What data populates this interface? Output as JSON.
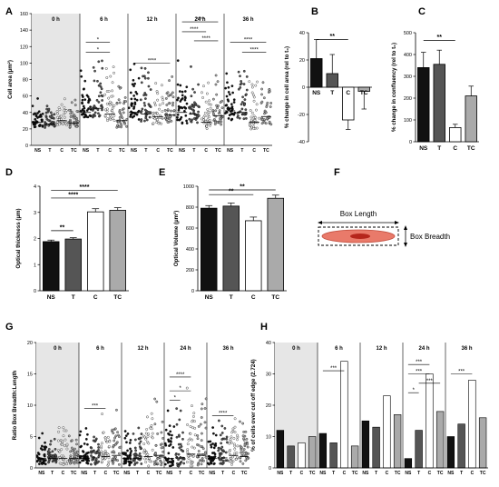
{
  "strip_colors": {
    "NS": "#111111",
    "T": "#555555",
    "C": "#ffffff",
    "TC": "#aaaaaa"
  },
  "chart_data": [
    {
      "panel": "A",
      "type": "scatter",
      "ylabel": "Cell area (µm²)",
      "ylim": [
        0,
        160
      ],
      "yticks": [
        0,
        20,
        40,
        60,
        80,
        100,
        120,
        140,
        160
      ],
      "categories": [
        "NS",
        "T",
        "C",
        "TC"
      ],
      "timepoints": [
        "0 h",
        "6 h",
        "12 h",
        "24 h",
        "36 h"
      ],
      "shaded_timepoint": "0 h",
      "series_medians": [
        [
          28,
          26,
          30,
          27
        ],
        [
          40,
          45,
          38,
          30
        ],
        [
          40,
          38,
          35,
          37
        ],
        [
          40,
          38,
          28,
          36
        ],
        [
          42,
          40,
          28,
          35
        ]
      ],
      "series_spread": [
        [
          35,
          30,
          40,
          30
        ],
        [
          55,
          70,
          60,
          50
        ],
        [
          70,
          60,
          55,
          50
        ],
        [
          80,
          70,
          55,
          60
        ],
        [
          70,
          65,
          55,
          60
        ]
      ],
      "significance": [
        {
          "timepoint": 1,
          "from": 0,
          "to": 2,
          "label": "*",
          "level": 125
        },
        {
          "timepoint": 1,
          "from": 0,
          "to": 2,
          "label": "*",
          "level": 113
        },
        {
          "timepoint": 2,
          "from": 0,
          "to": 3,
          "label": "****",
          "level": 100
        },
        {
          "timepoint": 3,
          "from": 0,
          "to": 3,
          "label": "****",
          "level": 150
        },
        {
          "timepoint": 3,
          "from": 0,
          "to": 2,
          "label": "****",
          "level": 138
        },
        {
          "timepoint": 3,
          "from": 1,
          "to": 3,
          "label": "****",
          "level": 127
        },
        {
          "timepoint": 4,
          "from": 0,
          "to": 3,
          "label": "****",
          "level": 125
        },
        {
          "timepoint": 4,
          "from": 1,
          "to": 3,
          "label": "****",
          "level": 113
        }
      ]
    },
    {
      "panel": "B",
      "type": "bar",
      "ylabel": "% change in cell area (rel to t₀)",
      "ylim": [
        -40,
        40
      ],
      "yticks": [
        -40,
        -20,
        0,
        20,
        40
      ],
      "categories": [
        "NS",
        "T",
        "C",
        "TC"
      ],
      "values": [
        21,
        10,
        -24,
        -3
      ],
      "errors": [
        14,
        14,
        7,
        13
      ],
      "significance": [
        {
          "from": 0,
          "to": 2,
          "label": "**",
          "level": 35
        }
      ]
    },
    {
      "panel": "C",
      "type": "bar",
      "ylabel": "% change in confluency (rel to t₀)",
      "ylim": [
        0,
        500
      ],
      "yticks": [
        0,
        100,
        200,
        300,
        400,
        500
      ],
      "categories": [
        "NS",
        "T",
        "C",
        "TC"
      ],
      "values": [
        340,
        355,
        65,
        210
      ],
      "errors": [
        70,
        65,
        15,
        45
      ],
      "significance": [
        {
          "from": 0,
          "to": 2,
          "label": "**",
          "level": 465
        }
      ]
    },
    {
      "panel": "D",
      "type": "bar",
      "ylabel": "Optical thickness (µm)",
      "ylim": [
        0,
        4
      ],
      "yticks": [
        0,
        1,
        2,
        3,
        4
      ],
      "categories": [
        "NS",
        "T",
        "C",
        "TC"
      ],
      "values": [
        1.88,
        1.98,
        3.02,
        3.08
      ],
      "errors": [
        0.06,
        0.05,
        0.12,
        0.1
      ],
      "significance": [
        {
          "from": 0,
          "to": 3,
          "label": "****",
          "level": 3.85
        },
        {
          "from": 0,
          "to": 2,
          "label": "****",
          "level": 3.55
        },
        {
          "from": 0,
          "to": 1,
          "label": "**",
          "level": 2.3
        }
      ]
    },
    {
      "panel": "E",
      "type": "bar",
      "ylabel": "Optical Volume (µm³)",
      "ylim": [
        0,
        1000
      ],
      "yticks": [
        0,
        200,
        400,
        600,
        800,
        1000
      ],
      "categories": [
        "NS",
        "T",
        "C",
        "TC"
      ],
      "values": [
        790,
        810,
        670,
        885
      ],
      "errors": [
        25,
        30,
        35,
        30
      ],
      "significance": [
        {
          "from": 0,
          "to": 3,
          "label": "**",
          "level": 965
        },
        {
          "from": 0,
          "to": 2,
          "label": "**",
          "level": 920
        }
      ]
    },
    {
      "panel": "G",
      "type": "scatter",
      "ylabel": "Ratio Box Breadth:Length",
      "ylim": [
        0,
        20
      ],
      "yticks": [
        0,
        5,
        10,
        15,
        20
      ],
      "categories": [
        "NS",
        "T",
        "C",
        "TC"
      ],
      "timepoints": [
        "0 h",
        "6 h",
        "12 h",
        "24 h",
        "36 h"
      ],
      "shaded_timepoint": "0 h",
      "series_medians": [
        [
          1.5,
          1.5,
          1.5,
          1.5
        ],
        [
          1.5,
          1.6,
          1.8,
          2.0
        ],
        [
          1.5,
          1.5,
          1.8,
          2.0
        ],
        [
          1.5,
          1.6,
          2.2,
          2.0
        ],
        [
          1.5,
          1.6,
          2.0,
          1.8
        ]
      ],
      "series_spread": [
        [
          5,
          4,
          6,
          5
        ],
        [
          6,
          6,
          9,
          9
        ],
        [
          6,
          6,
          9,
          10
        ],
        [
          8,
          10,
          12,
          10
        ],
        [
          6,
          7,
          9,
          8
        ]
      ],
      "significance": [
        {
          "timepoint": 1,
          "from": 0,
          "to": 2,
          "label": "***",
          "level": 9.5
        },
        {
          "timepoint": 3,
          "from": 0,
          "to": 2,
          "label": "****",
          "level": 14.5
        },
        {
          "timepoint": 3,
          "from": 0,
          "to": 2,
          "label": "*",
          "level": 12.3
        },
        {
          "timepoint": 3,
          "from": 0,
          "to": 1,
          "label": "*",
          "level": 10.8
        },
        {
          "timepoint": 4,
          "from": 0,
          "to": 2,
          "label": "****",
          "level": 8.3
        }
      ]
    },
    {
      "panel": "H",
      "type": "bar",
      "ylabel": "% of cells over cut off edge (2.724)",
      "ylim": [
        0,
        40
      ],
      "yticks": [
        0,
        10,
        20,
        30,
        40
      ],
      "categories": [
        "NS",
        "T",
        "C",
        "TC"
      ],
      "timepoints": [
        "0 h",
        "6 h",
        "12 h",
        "24 h",
        "36 h"
      ],
      "shaded_timepoint": "0 h",
      "values": [
        [
          12,
          7,
          8,
          10
        ],
        [
          11,
          8,
          34,
          7
        ],
        [
          15,
          13,
          23,
          17
        ],
        [
          3,
          12,
          30,
          18
        ],
        [
          10,
          14,
          28,
          16
        ]
      ],
      "significance": [
        {
          "timepoint": 1,
          "from": 0,
          "to": 2,
          "label": "***",
          "level": 31
        },
        {
          "timepoint": 3,
          "from": 0,
          "to": 2,
          "label": "***",
          "level": 33
        },
        {
          "timepoint": 3,
          "from": 0,
          "to": 2,
          "label": "***",
          "level": 30
        },
        {
          "timepoint": 3,
          "from": 1,
          "to": 3,
          "label": "***",
          "level": 27
        },
        {
          "timepoint": 3,
          "from": 0,
          "to": 1,
          "label": "*",
          "level": 24
        },
        {
          "timepoint": 4,
          "from": 0,
          "to": 2,
          "label": "***",
          "level": 30
        }
      ]
    }
  ],
  "panel_f": {
    "letter": "F",
    "length_label": "Box Length",
    "breadth_label": "Box Breadth"
  }
}
